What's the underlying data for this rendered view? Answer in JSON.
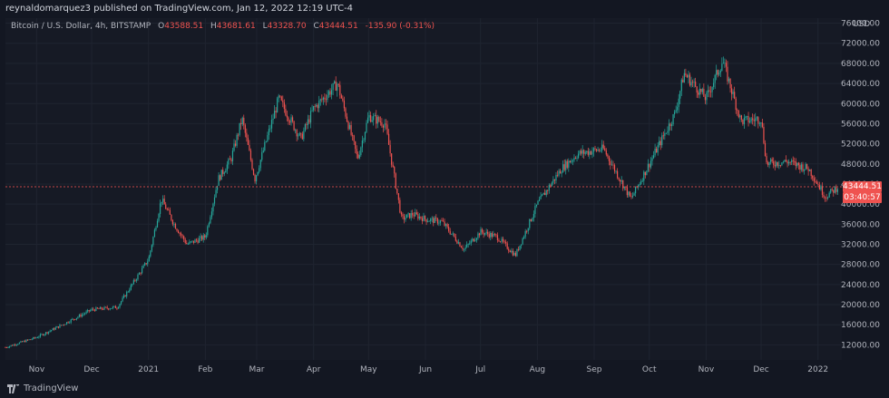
{
  "header": {
    "published": "reynaldomarquez3 published on TradingView.com, Jan 12, 2022 12:19 UTC-4"
  },
  "legend": {
    "symbol": "Bitcoin / U.S. Dollar, 4h, BITSTAMP",
    "open_key": "O",
    "open": "43588.51",
    "high_key": "H",
    "high": "43681.61",
    "low_key": "L",
    "low": "43328.70",
    "close_key": "C",
    "close": "43444.51",
    "change": "-135.90 (-0.31%)"
  },
  "axis": {
    "unit": "USD"
  },
  "last_price": {
    "price": "43444.51",
    "countdown": "03:40:57"
  },
  "footer": {
    "brand": "TradingView"
  },
  "colors": {
    "up": "#26a69a",
    "down": "#ef5350",
    "background": "#161a25",
    "text": "#b2b5be"
  },
  "chart_data": {
    "type": "line",
    "title": "Bitcoin / U.S. Dollar, 4h, BITSTAMP",
    "render_style": "candlestick",
    "ylabel": "USD",
    "ylim": [
      9000,
      77000
    ],
    "y_ticks": [
      "12000.00",
      "16000.00",
      "20000.00",
      "24000.00",
      "28000.00",
      "32000.00",
      "36000.00",
      "40000.00",
      "44000.00",
      "48000.00",
      "52000.00",
      "56000.00",
      "60000.00",
      "64000.00",
      "68000.00",
      "72000.00",
      "76000.00"
    ],
    "x_ticks": [
      "Nov",
      "Dec",
      "2021",
      "Feb",
      "Mar",
      "Apr",
      "May",
      "Jun",
      "Jul",
      "Aug",
      "Sep",
      "Oct",
      "Nov",
      "Dec",
      "2022"
    ],
    "xlim": [
      "2020-10-15",
      "2022-01-14"
    ],
    "last_close": 43444.51,
    "series": [
      {
        "x": [
          "2020-10-15",
          "2020-11-01",
          "2020-11-15",
          "2020-12-01",
          "2020-12-15",
          "2021-01-01",
          "2021-01-08",
          "2021-01-15",
          "2021-01-22",
          "2021-02-01",
          "2021-02-08",
          "2021-02-15",
          "2021-02-21",
          "2021-02-28",
          "2021-03-13",
          "2021-03-25",
          "2021-04-01",
          "2021-04-14",
          "2021-04-25",
          "2021-05-01",
          "2021-05-10",
          "2021-05-19",
          "2021-05-25",
          "2021-06-01",
          "2021-06-10",
          "2021-06-22",
          "2021-07-01",
          "2021-07-10",
          "2021-07-20",
          "2021-08-01",
          "2021-08-14",
          "2021-08-23",
          "2021-09-06",
          "2021-09-21",
          "2021-10-01",
          "2021-10-15",
          "2021-10-20",
          "2021-11-01",
          "2021-11-10",
          "2021-11-20",
          "2021-12-01",
          "2021-12-04",
          "2021-12-15",
          "2021-12-27",
          "2022-01-05",
          "2022-01-12"
        ],
        "values": [
          11500,
          13500,
          16000,
          19000,
          19500,
          29000,
          41000,
          36000,
          32000,
          33500,
          45000,
          49000,
          57000,
          45000,
          61000,
          53000,
          59000,
          64000,
          49000,
          57500,
          56000,
          37000,
          38000,
          37000,
          36500,
          31000,
          34500,
          33500,
          29800,
          40000,
          47000,
          50000,
          51000,
          41000,
          48000,
          58000,
          66000,
          61000,
          68500,
          56500,
          57000,
          48000,
          48500,
          47000,
          41500,
          43444.51
        ]
      }
    ]
  }
}
